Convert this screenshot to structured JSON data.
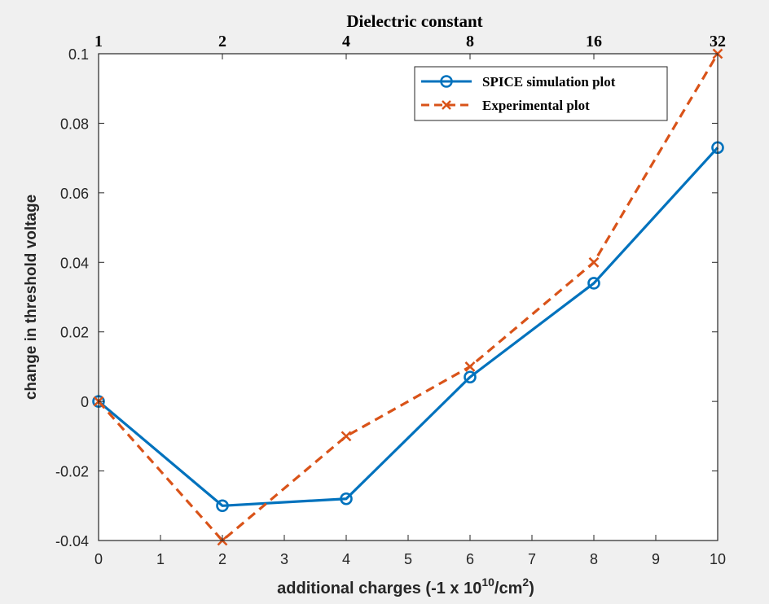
{
  "chart_data": {
    "type": "line",
    "title": "",
    "xlabel_main": "additional charges (-1 x 10",
    "xlabel_sup": "10",
    "xlabel_mid": "/cm",
    "xlabel_sup2": "2",
    "xlabel_end": ")",
    "ylabel": "change in threshold voltage",
    "top_axis_title": "Dielectric constant",
    "xlim": [
      0,
      10
    ],
    "ylim": [
      -0.04,
      0.1
    ],
    "x_ticks": [
      "0",
      "1",
      "2",
      "3",
      "4",
      "5",
      "6",
      "7",
      "8",
      "9",
      "10"
    ],
    "y_ticks": [
      "-0.04",
      "-0.02",
      "0",
      "0.02",
      "0.04",
      "0.06",
      "0.08",
      "0.1"
    ],
    "y_tick_values": [
      -0.04,
      -0.02,
      0,
      0.02,
      0.04,
      0.06,
      0.08,
      0.1
    ],
    "top_ticks": [
      {
        "x": 0,
        "label": "1"
      },
      {
        "x": 2,
        "label": "2"
      },
      {
        "x": 4,
        "label": "4"
      },
      {
        "x": 6,
        "label": "8"
      },
      {
        "x": 8,
        "label": "16"
      },
      {
        "x": 10,
        "label": "32"
      }
    ],
    "grid": false,
    "legend_position": "top-right",
    "series": [
      {
        "name": "SPICE simulation plot",
        "color": "#0072bd",
        "style": "solid",
        "marker": "circle",
        "x": [
          0,
          2,
          4,
          6,
          8,
          10
        ],
        "values": [
          0,
          -0.03,
          -0.028,
          0.007,
          0.034,
          0.073
        ]
      },
      {
        "name": "Experimental plot",
        "color": "#d95319",
        "style": "dashed",
        "marker": "x",
        "x": [
          0,
          2,
          4,
          6,
          8,
          10
        ],
        "values": [
          0,
          -0.04,
          -0.01,
          0.01,
          0.04,
          0.1
        ]
      }
    ]
  }
}
